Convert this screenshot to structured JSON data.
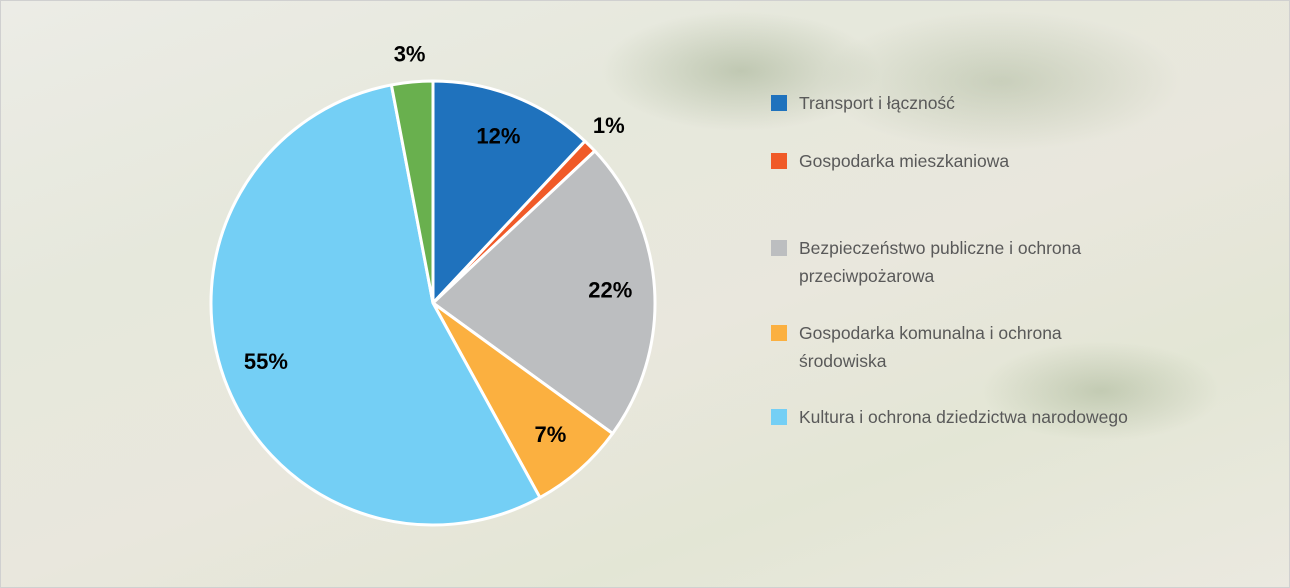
{
  "chart_data": {
    "type": "pie",
    "categories": [
      "Transport i łączność",
      "Gospodarka mieszkaniowa",
      "Bezpieczeństwo publiczne i ochrona przeciwpożarowa",
      "Gospodarka komunalna i ochrona środowiska",
      "Kultura i ochrona dziedzictwa narodowego",
      null
    ],
    "values": [
      12,
      1,
      22,
      7,
      55,
      3
    ],
    "value_labels": [
      "12%",
      "1%",
      "22%",
      "7%",
      "55%",
      "3%"
    ],
    "colors": [
      "#1f72bd",
      "#f05a28",
      "#bcbec0",
      "#fbb040",
      "#74cff5",
      "#69b04e"
    ],
    "legend": "right"
  }
}
